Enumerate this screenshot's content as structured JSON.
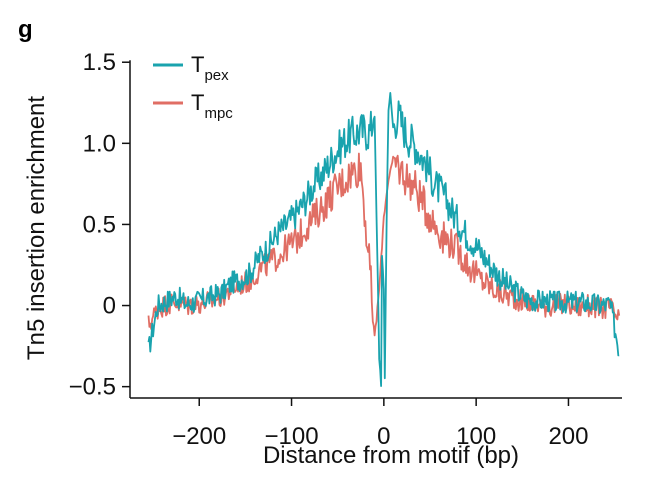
{
  "panel_label": "g",
  "chart_data": {
    "type": "line",
    "xlabel": "Distance from motif (bp)",
    "ylabel": "Tn5 insertion enrichment",
    "xlim": [
      -262,
      258
    ],
    "ylim": [
      -0.57,
      1.6
    ],
    "xticks": [
      -200,
      -100,
      0,
      100,
      200
    ],
    "xtick_labels": [
      "−200",
      "−100",
      "0",
      "100",
      "200"
    ],
    "yticks": [
      -0.5,
      0,
      0.5,
      1.0,
      1.5
    ],
    "ytick_labels": [
      "−0.5",
      "0",
      "0.5",
      "1.0",
      "1.5"
    ],
    "grid": false,
    "legend_position": "top-left",
    "series": [
      {
        "name": "T",
        "name_sub": "pex",
        "color": "#1aa3ae",
        "x": [
          -255,
          -245,
          -235,
          -225,
          -215,
          -205,
          -195,
          -185,
          -175,
          -165,
          -155,
          -145,
          -135,
          -125,
          -115,
          -105,
          -95,
          -85,
          -75,
          -65,
          -55,
          -45,
          -35,
          -25,
          -15,
          -10,
          -8,
          -6,
          -5,
          -3,
          -2,
          0,
          1,
          3,
          5,
          7,
          10,
          15,
          25,
          35,
          45,
          55,
          65,
          75,
          85,
          95,
          105,
          115,
          125,
          135,
          145,
          155,
          165,
          175,
          185,
          195,
          205,
          215,
          225,
          235,
          245,
          255
        ],
        "y": [
          -0.28,
          0.0,
          0.03,
          0.06,
          0.01,
          0.02,
          0.04,
          0.06,
          0.08,
          0.14,
          0.16,
          0.2,
          0.3,
          0.36,
          0.45,
          0.5,
          0.57,
          0.65,
          0.75,
          0.82,
          0.92,
          1.0,
          1.05,
          1.08,
          1.07,
          1.18,
          0.55,
          0.0,
          -0.32,
          -0.48,
          0.3,
          0.1,
          -0.44,
          0.5,
          1.22,
          1.3,
          1.1,
          1.18,
          1.05,
          0.98,
          0.88,
          0.75,
          0.68,
          0.57,
          0.47,
          0.4,
          0.33,
          0.25,
          0.18,
          0.12,
          0.08,
          0.04,
          0.03,
          0.03,
          0.02,
          0.02,
          0.02,
          0.02,
          0.01,
          0.0,
          0.01,
          -0.28
        ]
      },
      {
        "name": "T",
        "name_sub": "mpc",
        "color": "#e06e64",
        "x": [
          -255,
          -245,
          -235,
          -225,
          -215,
          -205,
          -195,
          -185,
          -175,
          -165,
          -155,
          -145,
          -135,
          -125,
          -115,
          -105,
          -95,
          -85,
          -75,
          -65,
          -55,
          -45,
          -35,
          -25,
          -15,
          -10,
          -5,
          0,
          5,
          10,
          15,
          25,
          35,
          45,
          55,
          65,
          75,
          85,
          95,
          105,
          115,
          125,
          135,
          145,
          155,
          165,
          175,
          185,
          195,
          205,
          215,
          225,
          235,
          245,
          255
        ],
        "y": [
          -0.12,
          -0.02,
          0.01,
          0.02,
          0.0,
          0.01,
          0.02,
          0.03,
          0.06,
          0.1,
          0.13,
          0.15,
          0.22,
          0.26,
          0.3,
          0.36,
          0.4,
          0.48,
          0.55,
          0.62,
          0.7,
          0.76,
          0.82,
          0.86,
          0.2,
          -0.2,
          0.1,
          0.55,
          0.78,
          0.9,
          0.86,
          0.78,
          0.72,
          0.6,
          0.5,
          0.42,
          0.38,
          0.3,
          0.22,
          0.16,
          0.12,
          0.08,
          0.06,
          0.04,
          0.02,
          0.01,
          0.0,
          0.0,
          0.01,
          0.0,
          -0.01,
          0.0,
          -0.02,
          -0.01,
          -0.1
        ]
      }
    ]
  }
}
